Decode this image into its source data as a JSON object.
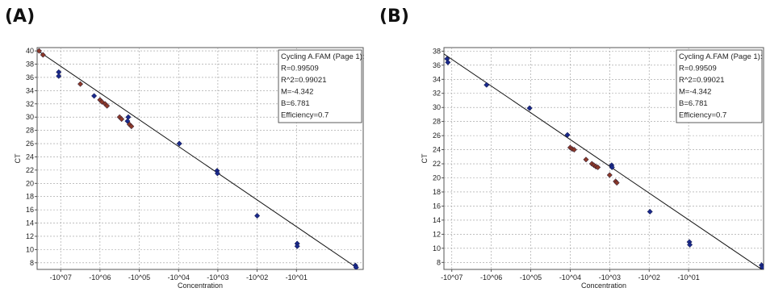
{
  "panels": [
    {
      "label": "(A)"
    },
    {
      "label": "(B)"
    }
  ],
  "chart_data": [
    {
      "type": "scatter",
      "panel": "(A)",
      "xlabel": "Concentration",
      "ylabel": "CT",
      "x_scale": "log10",
      "xlim": [
        -7.6,
        0.7
      ],
      "ylim": [
        7,
        40.5
      ],
      "xticks": [
        {
          "value": -7,
          "label": "-10^07"
        },
        {
          "value": -6,
          "label": "-10^06"
        },
        {
          "value": -5,
          "label": "-10^05"
        },
        {
          "value": -4,
          "label": "-10^04"
        },
        {
          "value": -3,
          "label": "-10^03"
        },
        {
          "value": -2,
          "label": "-10^02"
        },
        {
          "value": -1,
          "label": "-10^01"
        }
      ],
      "yticks": [
        8,
        10,
        12,
        14,
        16,
        18,
        20,
        22,
        24,
        26,
        28,
        30,
        32,
        34,
        36,
        38,
        40
      ],
      "grid": true,
      "legend_position": "top-right",
      "legend": {
        "title": "Cycling A.FAM (Page 1):",
        "lines": [
          "R=0.99509",
          "R^2=0.99021",
          "M=-4.342",
          "B=6.781",
          "Efficiency=0.7"
        ]
      },
      "fit_line": {
        "x": [
          -7.6,
          0.55
        ],
        "y": [
          40.1,
          7.2
        ]
      },
      "series": [
        {
          "color": "#1a2a8c",
          "points": [
            {
              "x": -7.05,
              "y": 36.8
            },
            {
              "x": -7.05,
              "y": 36.2
            },
            {
              "x": -6.15,
              "y": 33.2
            },
            {
              "x": -5.28,
              "y": 30.0
            },
            {
              "x": -5.3,
              "y": 29.4
            },
            {
              "x": -3.98,
              "y": 26.0
            },
            {
              "x": -3.02,
              "y": 21.9
            },
            {
              "x": -3.01,
              "y": 21.5
            },
            {
              "x": -2.0,
              "y": 15.1
            },
            {
              "x": -0.98,
              "y": 10.9
            },
            {
              "x": -0.98,
              "y": 10.5
            },
            {
              "x": 0.5,
              "y": 7.6
            },
            {
              "x": 0.52,
              "y": 7.3
            }
          ]
        },
        {
          "color": "#8b3a2a",
          "points": [
            {
              "x": -7.55,
              "y": 40.0
            },
            {
              "x": -7.45,
              "y": 39.4
            },
            {
              "x": -6.5,
              "y": 35.0
            },
            {
              "x": -6.0,
              "y": 32.6
            },
            {
              "x": -5.95,
              "y": 32.3
            },
            {
              "x": -5.87,
              "y": 32.0
            },
            {
              "x": -5.82,
              "y": 31.7
            },
            {
              "x": -5.5,
              "y": 30.0
            },
            {
              "x": -5.45,
              "y": 29.7
            },
            {
              "x": -5.25,
              "y": 28.9
            },
            {
              "x": -5.2,
              "y": 28.6
            }
          ]
        }
      ]
    },
    {
      "type": "scatter",
      "panel": "(B)",
      "xlabel": "Concentration",
      "ylabel": "CT",
      "x_scale": "log10",
      "xlim": [
        -7.2,
        0.9
      ],
      "ylim": [
        7,
        38.5
      ],
      "xticks": [
        {
          "value": -7,
          "label": "-10^07"
        },
        {
          "value": -6,
          "label": "-10^06"
        },
        {
          "value": -5,
          "label": "-10^05"
        },
        {
          "value": -4,
          "label": "-10^04"
        },
        {
          "value": -3,
          "label": "-10^03"
        },
        {
          "value": -2,
          "label": "-10^02"
        },
        {
          "value": -1,
          "label": "-10^01"
        }
      ],
      "yticks": [
        8,
        10,
        12,
        14,
        16,
        18,
        20,
        22,
        24,
        26,
        28,
        30,
        32,
        34,
        36,
        38
      ],
      "grid": true,
      "legend_position": "top-right",
      "legend": {
        "title": "Cycling A.FAM (Page 1):",
        "lines": [
          "R=0.99509",
          "R^2=0.99021",
          "M=-4.342",
          "B=6.781",
          "Efficiency=0.7"
        ]
      },
      "fit_line": {
        "x": [
          -7.2,
          0.88
        ],
        "y": [
          37.6,
          6.9
        ]
      },
      "series": [
        {
          "color": "#1a2a8c",
          "points": [
            {
              "x": -7.12,
              "y": 36.9
            },
            {
              "x": -7.1,
              "y": 36.4
            },
            {
              "x": -6.12,
              "y": 33.2
            },
            {
              "x": -5.03,
              "y": 29.9
            },
            {
              "x": -4.07,
              "y": 26.1
            },
            {
              "x": -2.95,
              "y": 21.8
            },
            {
              "x": -2.94,
              "y": 21.5
            },
            {
              "x": -1.98,
              "y": 15.2
            },
            {
              "x": -0.98,
              "y": 10.9
            },
            {
              "x": -0.97,
              "y": 10.5
            },
            {
              "x": 0.85,
              "y": 7.6
            },
            {
              "x": 0.87,
              "y": 7.3
            }
          ]
        },
        {
          "color": "#8b3a2a",
          "points": [
            {
              "x": -4.0,
              "y": 24.3
            },
            {
              "x": -3.95,
              "y": 24.1
            },
            {
              "x": -3.9,
              "y": 24.0
            },
            {
              "x": -3.6,
              "y": 22.6
            },
            {
              "x": -3.45,
              "y": 22.0
            },
            {
              "x": -3.4,
              "y": 21.8
            },
            {
              "x": -3.35,
              "y": 21.6
            },
            {
              "x": -3.3,
              "y": 21.5
            },
            {
              "x": -3.0,
              "y": 20.4
            },
            {
              "x": -2.85,
              "y": 19.5
            },
            {
              "x": -2.82,
              "y": 19.3
            }
          ]
        }
      ]
    }
  ]
}
